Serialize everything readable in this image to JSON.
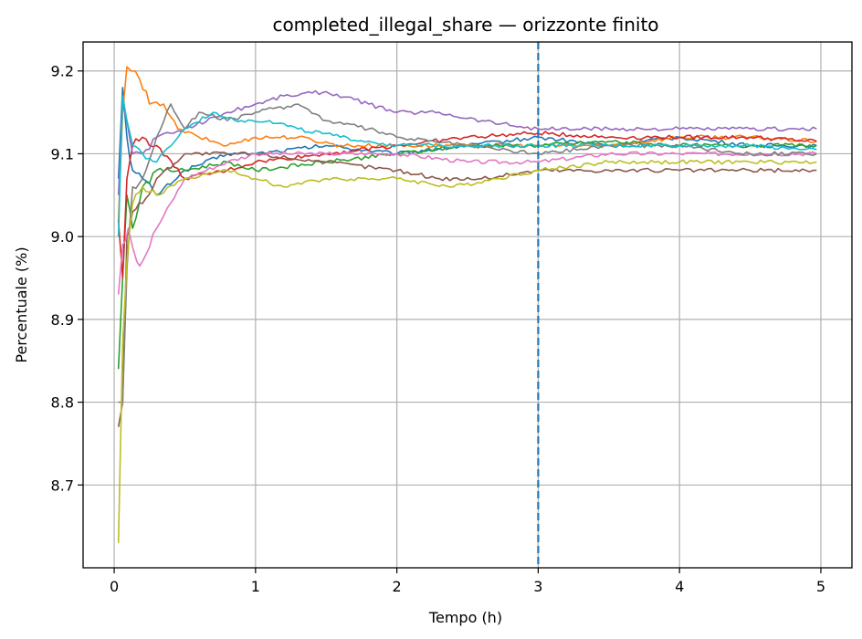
{
  "chart_data": {
    "type": "line",
    "title": "completed_illegal_share — orizzonte finito",
    "xlabel": "Tempo (h)",
    "ylabel": "Percentuale (%)",
    "xlim": [
      -0.22,
      5.22
    ],
    "ylim": [
      8.6,
      9.235
    ],
    "x_ticks": [
      0,
      1,
      2,
      3,
      4,
      5
    ],
    "y_ticks": [
      8.7,
      8.8,
      8.9,
      9.0,
      9.1,
      9.2
    ],
    "x_tick_labels": [
      "0",
      "1",
      "2",
      "3",
      "4",
      "5"
    ],
    "y_tick_labels": [
      "8.7",
      "8.8",
      "8.9",
      "9.0",
      "9.1",
      "9.2"
    ],
    "grid": true,
    "legend": false,
    "vline": {
      "x": 3,
      "color": "#1f77b4",
      "style": "dashed"
    },
    "series": [
      {
        "color": "#1f77b4",
        "points": [
          [
            0.03,
            9.07
          ],
          [
            0.06,
            9.18
          ],
          [
            0.09,
            9.12
          ],
          [
            0.13,
            9.08
          ],
          [
            0.2,
            9.07
          ],
          [
            0.3,
            9.05
          ],
          [
            0.5,
            9.08
          ],
          [
            0.8,
            9.1
          ],
          [
            1.0,
            9.1
          ],
          [
            1.5,
            9.11
          ],
          [
            2.0,
            9.1
          ],
          [
            2.5,
            9.11
          ],
          [
            3.0,
            9.12
          ],
          [
            3.5,
            9.11
          ],
          [
            4.0,
            9.12
          ],
          [
            4.5,
            9.11
          ],
          [
            4.97,
            9.11
          ]
        ]
      },
      {
        "color": "#ff7f0e",
        "points": [
          [
            0.03,
            9.02
          ],
          [
            0.06,
            9.15
          ],
          [
            0.09,
            9.205
          ],
          [
            0.12,
            9.2
          ],
          [
            0.18,
            9.19
          ],
          [
            0.25,
            9.16
          ],
          [
            0.35,
            9.16
          ],
          [
            0.45,
            9.13
          ],
          [
            0.6,
            9.12
          ],
          [
            0.8,
            9.11
          ],
          [
            1.0,
            9.12
          ],
          [
            1.3,
            9.12
          ],
          [
            1.6,
            9.11
          ],
          [
            2.0,
            9.11
          ],
          [
            2.5,
            9.11
          ],
          [
            3.0,
            9.11
          ],
          [
            3.5,
            9.11
          ],
          [
            4.0,
            9.12
          ],
          [
            4.5,
            9.12
          ],
          [
            4.97,
            9.115
          ]
        ]
      },
      {
        "color": "#2ca02c",
        "points": [
          [
            0.03,
            8.84
          ],
          [
            0.06,
            8.95
          ],
          [
            0.09,
            9.05
          ],
          [
            0.13,
            9.01
          ],
          [
            0.2,
            9.06
          ],
          [
            0.3,
            9.08
          ],
          [
            0.5,
            9.08
          ],
          [
            0.8,
            9.09
          ],
          [
            1.0,
            9.08
          ],
          [
            1.5,
            9.09
          ],
          [
            2.0,
            9.1
          ],
          [
            2.5,
            9.11
          ],
          [
            3.0,
            9.11
          ],
          [
            3.5,
            9.115
          ],
          [
            4.0,
            9.11
          ],
          [
            4.5,
            9.11
          ],
          [
            4.97,
            9.11
          ]
        ]
      },
      {
        "color": "#d62728",
        "points": [
          [
            0.03,
            9.02
          ],
          [
            0.06,
            8.95
          ],
          [
            0.09,
            9.07
          ],
          [
            0.13,
            9.11
          ],
          [
            0.2,
            9.12
          ],
          [
            0.3,
            9.11
          ],
          [
            0.5,
            9.07
          ],
          [
            0.8,
            9.08
          ],
          [
            1.0,
            9.09
          ],
          [
            1.5,
            9.1
          ],
          [
            2.0,
            9.11
          ],
          [
            2.5,
            9.12
          ],
          [
            3.0,
            9.125
          ],
          [
            3.5,
            9.12
          ],
          [
            4.0,
            9.12
          ],
          [
            4.5,
            9.12
          ],
          [
            4.97,
            9.115
          ]
        ]
      },
      {
        "color": "#9467bd",
        "points": [
          [
            0.03,
            9.05
          ],
          [
            0.06,
            9.16
          ],
          [
            0.09,
            9.14
          ],
          [
            0.13,
            9.1
          ],
          [
            0.2,
            9.1
          ],
          [
            0.3,
            9.12
          ],
          [
            0.5,
            9.13
          ],
          [
            0.8,
            9.15
          ],
          [
            1.0,
            9.16
          ],
          [
            1.2,
            9.17
          ],
          [
            1.5,
            9.175
          ],
          [
            1.8,
            9.16
          ],
          [
            2.0,
            9.15
          ],
          [
            2.3,
            9.15
          ],
          [
            2.6,
            9.14
          ],
          [
            3.0,
            9.13
          ],
          [
            3.5,
            9.13
          ],
          [
            4.0,
            9.13
          ],
          [
            4.5,
            9.13
          ],
          [
            4.97,
            9.13
          ]
        ]
      },
      {
        "color": "#8c564b",
        "points": [
          [
            0.03,
            8.77
          ],
          [
            0.06,
            8.8
          ],
          [
            0.09,
            9.0
          ],
          [
            0.13,
            9.03
          ],
          [
            0.2,
            9.04
          ],
          [
            0.3,
            9.07
          ],
          [
            0.5,
            9.1
          ],
          [
            0.8,
            9.1
          ],
          [
            1.0,
            9.1
          ],
          [
            1.5,
            9.09
          ],
          [
            2.0,
            9.08
          ],
          [
            2.3,
            9.07
          ],
          [
            2.6,
            9.07
          ],
          [
            3.0,
            9.08
          ],
          [
            3.5,
            9.08
          ],
          [
            4.0,
            9.08
          ],
          [
            4.5,
            9.08
          ],
          [
            4.97,
            9.08
          ]
        ]
      },
      {
        "color": "#e377c2",
        "points": [
          [
            0.03,
            8.93
          ],
          [
            0.06,
            8.99
          ],
          [
            0.1,
            9.01
          ],
          [
            0.16,
            8.97
          ],
          [
            0.2,
            8.97
          ],
          [
            0.3,
            9.01
          ],
          [
            0.5,
            9.07
          ],
          [
            0.8,
            9.09
          ],
          [
            1.0,
            9.1
          ],
          [
            1.5,
            9.1
          ],
          [
            2.0,
            9.1
          ],
          [
            2.5,
            9.09
          ],
          [
            3.0,
            9.09
          ],
          [
            3.5,
            9.1
          ],
          [
            4.0,
            9.1
          ],
          [
            4.5,
            9.1
          ],
          [
            4.97,
            9.1
          ]
        ]
      },
      {
        "color": "#7f7f7f",
        "points": [
          [
            0.03,
            8.8
          ],
          [
            0.06,
            8.8
          ],
          [
            0.09,
            8.96
          ],
          [
            0.13,
            9.06
          ],
          [
            0.2,
            9.07
          ],
          [
            0.3,
            9.12
          ],
          [
            0.4,
            9.16
          ],
          [
            0.5,
            9.13
          ],
          [
            0.6,
            9.15
          ],
          [
            0.8,
            9.14
          ],
          [
            1.0,
            9.15
          ],
          [
            1.3,
            9.16
          ],
          [
            1.5,
            9.14
          ],
          [
            1.8,
            9.13
          ],
          [
            2.0,
            9.12
          ],
          [
            2.5,
            9.11
          ],
          [
            3.0,
            9.1
          ],
          [
            3.5,
            9.11
          ],
          [
            4.0,
            9.11
          ],
          [
            4.5,
            9.1
          ],
          [
            4.97,
            9.1
          ]
        ]
      },
      {
        "color": "#bcbd22",
        "points": [
          [
            0.03,
            8.63
          ],
          [
            0.06,
            8.87
          ],
          [
            0.09,
            8.97
          ],
          [
            0.13,
            9.04
          ],
          [
            0.2,
            9.06
          ],
          [
            0.3,
            9.05
          ],
          [
            0.5,
            9.07
          ],
          [
            0.8,
            9.08
          ],
          [
            1.0,
            9.07
          ],
          [
            1.2,
            9.06
          ],
          [
            1.5,
            9.07
          ],
          [
            2.0,
            9.07
          ],
          [
            2.4,
            9.06
          ],
          [
            2.7,
            9.07
          ],
          [
            3.0,
            9.08
          ],
          [
            3.5,
            9.09
          ],
          [
            4.0,
            9.09
          ],
          [
            4.5,
            9.09
          ],
          [
            4.97,
            9.09
          ]
        ]
      },
      {
        "color": "#17becf",
        "points": [
          [
            0.03,
            9.0
          ],
          [
            0.06,
            9.17
          ],
          [
            0.09,
            9.14
          ],
          [
            0.13,
            9.11
          ],
          [
            0.2,
            9.1
          ],
          [
            0.3,
            9.09
          ],
          [
            0.5,
            9.13
          ],
          [
            0.7,
            9.15
          ],
          [
            0.9,
            9.14
          ],
          [
            1.1,
            9.14
          ],
          [
            1.3,
            9.13
          ],
          [
            1.6,
            9.12
          ],
          [
            2.0,
            9.11
          ],
          [
            2.5,
            9.11
          ],
          [
            3.0,
            9.11
          ],
          [
            3.5,
            9.11
          ],
          [
            4.0,
            9.11
          ],
          [
            4.5,
            9.11
          ],
          [
            4.97,
            9.105
          ]
        ]
      }
    ]
  }
}
